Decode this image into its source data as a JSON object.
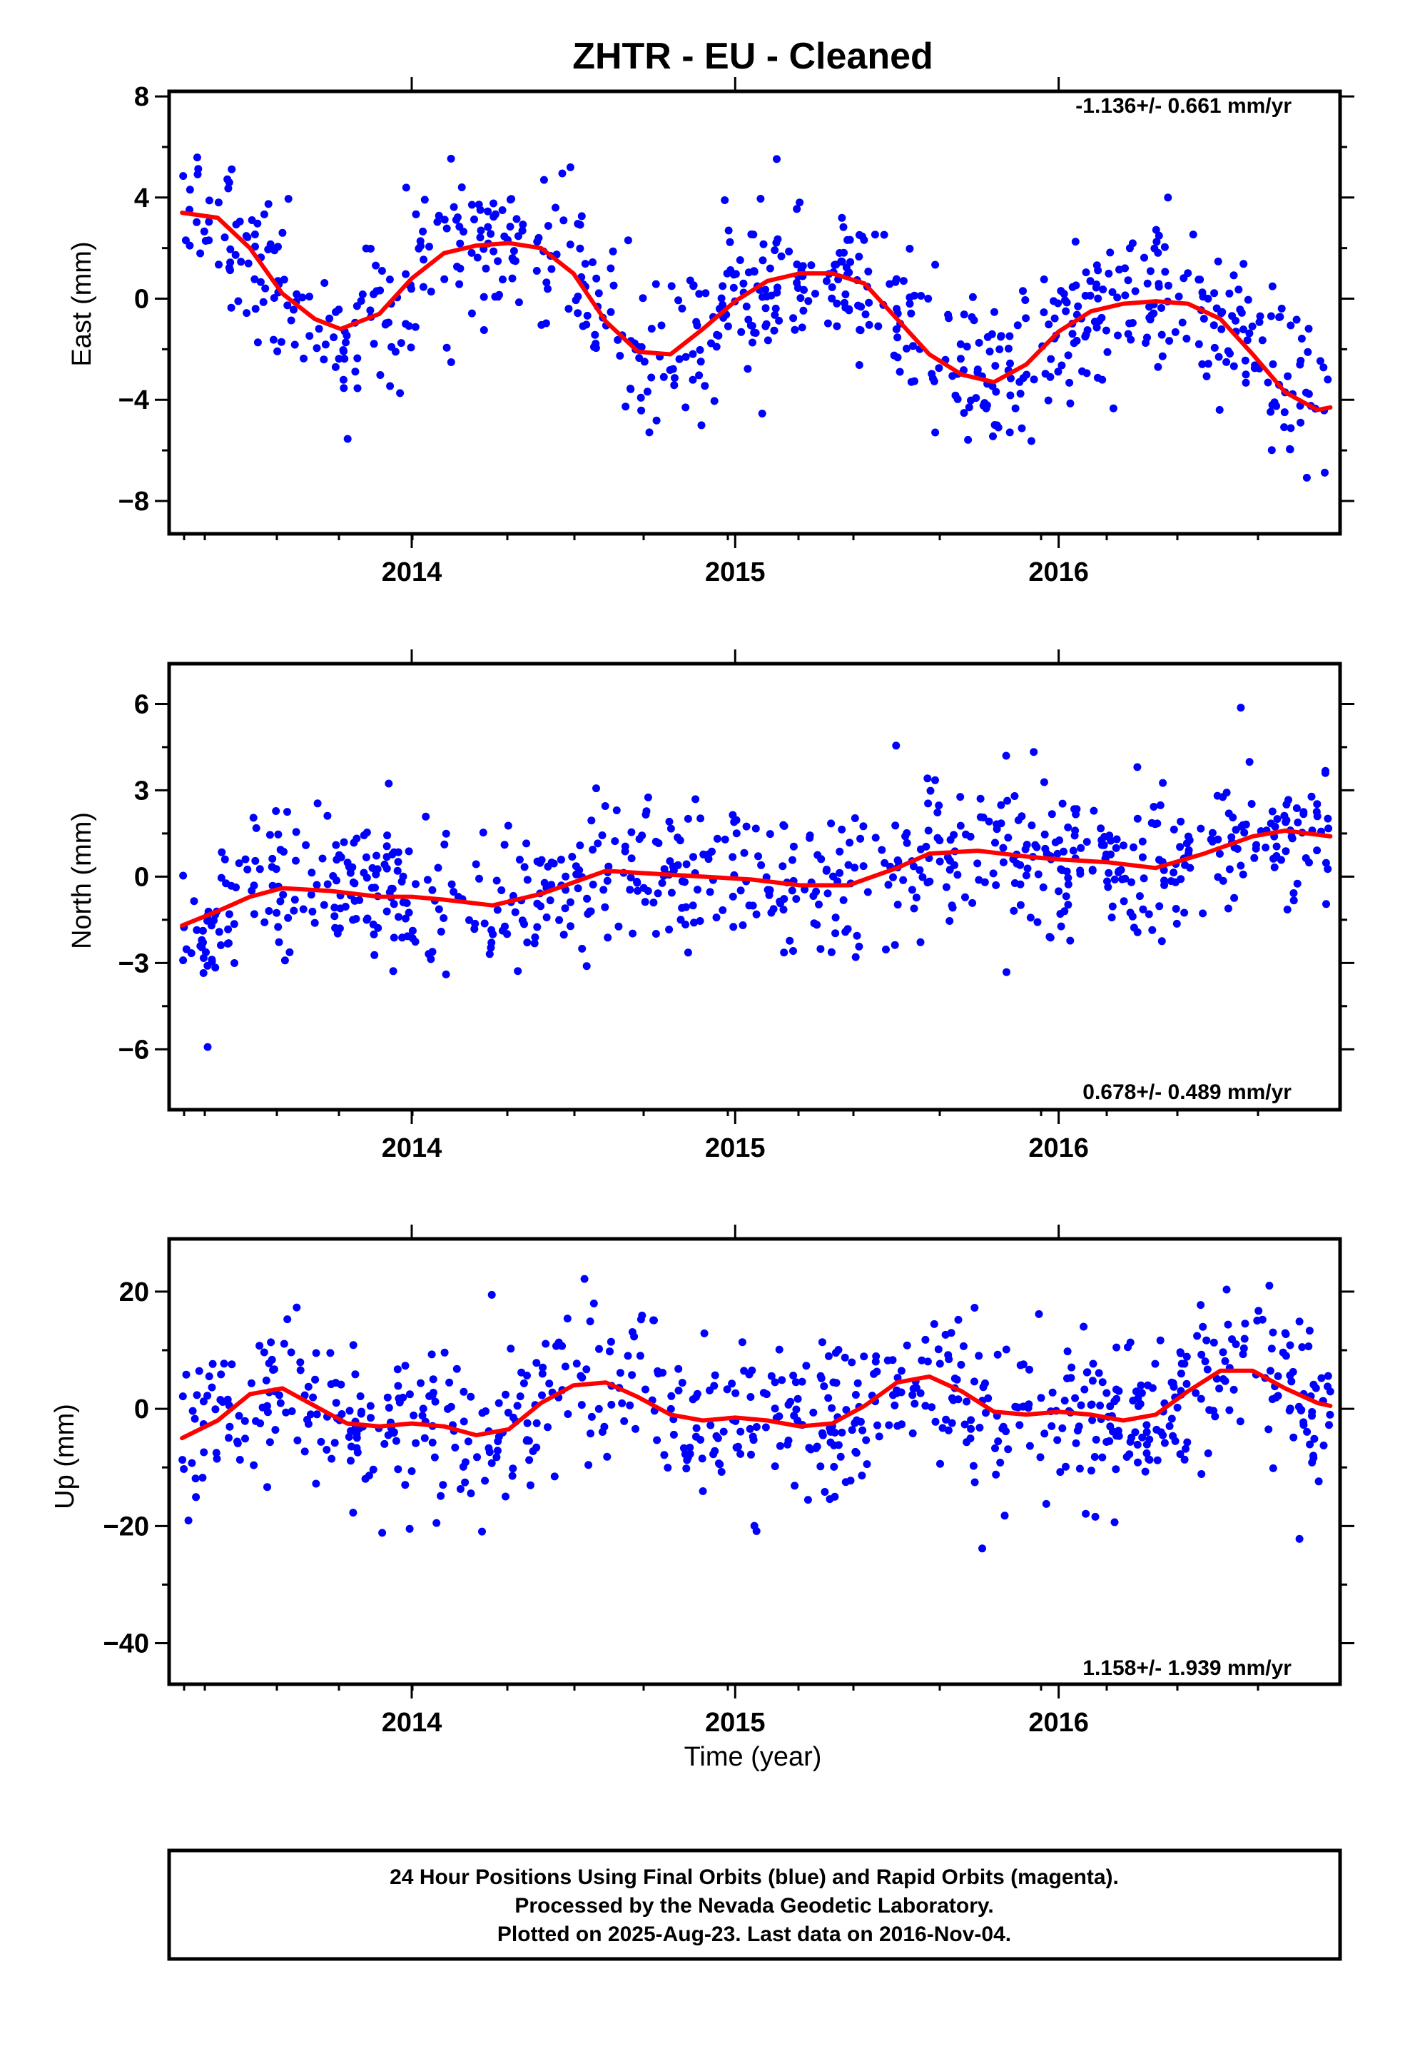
{
  "title": "ZHTR  - EU - Cleaned",
  "xlabel": "Time (year)",
  "footer": [
    "24 Hour Positions Using Final Orbits (blue) and Rapid Orbits (magenta).",
    "Processed by the Nevada Geodetic Laboratory.",
    "Plotted on 2025-Aug-23. Last data on 2016-Nov-04."
  ],
  "colors": {
    "points": "#0000ff",
    "trend": "#ff0000",
    "frame": "#000000"
  },
  "chart_data": [
    {
      "type": "scatter",
      "ylabel": "East (mm)",
      "rate": "-1.136+/- 0.661 mm/yr",
      "rate_position": "top-right",
      "xlim": [
        2013.25,
        2016.87
      ],
      "ylim": [
        -9.3,
        8.2
      ],
      "yticks": [
        -8,
        -4,
        0,
        4,
        8
      ],
      "xticks": [
        2014,
        2015,
        2016
      ],
      "trend": {
        "x": [
          2013.29,
          2013.4,
          2013.5,
          2013.6,
          2013.7,
          2013.78,
          2013.9,
          2014.0,
          2014.1,
          2014.2,
          2014.3,
          2014.4,
          2014.5,
          2014.6,
          2014.7,
          2014.8,
          2014.9,
          2015.0,
          2015.1,
          2015.2,
          2015.3,
          2015.4,
          2015.5,
          2015.6,
          2015.7,
          2015.8,
          2015.9,
          2016.0,
          2016.1,
          2016.2,
          2016.3,
          2016.4,
          2016.5,
          2016.6,
          2016.7,
          2016.8,
          2016.84
        ],
        "y": [
          3.4,
          3.2,
          2.0,
          0.2,
          -0.8,
          -1.2,
          -0.6,
          0.8,
          1.8,
          2.1,
          2.2,
          2.0,
          1.0,
          -0.9,
          -2.1,
          -2.2,
          -1.2,
          -0.1,
          0.7,
          1.0,
          1.0,
          0.6,
          -0.8,
          -2.2,
          -3.0,
          -3.3,
          -2.6,
          -1.3,
          -0.5,
          -0.2,
          -0.1,
          -0.2,
          -0.8,
          -2.2,
          -3.7,
          -4.4,
          -4.3
        ]
      }
    },
    {
      "type": "scatter",
      "ylabel": "North (mm)",
      "rate": "0.678+/- 0.489 mm/yr",
      "rate_position": "bottom-right",
      "xlim": [
        2013.25,
        2016.87
      ],
      "ylim": [
        -8.1,
        7.4
      ],
      "yticks": [
        -6,
        -3,
        0,
        3,
        6
      ],
      "xticks": [
        2014,
        2015,
        2016
      ],
      "trend": {
        "x": [
          2013.29,
          2013.4,
          2013.5,
          2013.6,
          2013.75,
          2013.9,
          2014.0,
          2014.1,
          2014.25,
          2014.4,
          2014.5,
          2014.6,
          2014.75,
          2014.9,
          2015.05,
          2015.2,
          2015.35,
          2015.5,
          2015.6,
          2015.75,
          2015.9,
          2016.0,
          2016.15,
          2016.3,
          2016.45,
          2016.6,
          2016.7,
          2016.84
        ],
        "y": [
          -1.7,
          -1.2,
          -0.7,
          -0.4,
          -0.5,
          -0.7,
          -0.7,
          -0.8,
          -1.0,
          -0.6,
          -0.2,
          0.2,
          0.1,
          0.0,
          -0.1,
          -0.3,
          -0.3,
          0.3,
          0.8,
          0.9,
          0.7,
          0.6,
          0.5,
          0.3,
          0.8,
          1.4,
          1.6,
          1.4
        ]
      }
    },
    {
      "type": "scatter",
      "ylabel": "Up (mm)",
      "rate": "1.158+/- 1.939 mm/yr",
      "rate_position": "bottom-right",
      "xlim": [
        2013.25,
        2016.87
      ],
      "ylim": [
        -47,
        29
      ],
      "yticks": [
        -40,
        -20,
        0,
        20
      ],
      "xticks": [
        2014,
        2015,
        2016
      ],
      "trend": {
        "x": [
          2013.29,
          2013.4,
          2013.5,
          2013.6,
          2013.7,
          2013.8,
          2013.9,
          2014.0,
          2014.1,
          2014.2,
          2014.3,
          2014.4,
          2014.5,
          2014.6,
          2014.7,
          2014.8,
          2014.9,
          2015.0,
          2015.1,
          2015.2,
          2015.3,
          2015.4,
          2015.5,
          2015.6,
          2015.7,
          2015.8,
          2015.9,
          2016.0,
          2016.1,
          2016.2,
          2016.3,
          2016.4,
          2016.5,
          2016.6,
          2016.7,
          2016.8,
          2016.84
        ],
        "y": [
          -5.0,
          -2.0,
          2.5,
          3.5,
          0.5,
          -2.5,
          -3.0,
          -2.5,
          -3.0,
          -4.5,
          -3.5,
          1.0,
          4.0,
          4.5,
          2.0,
          -1.0,
          -2.0,
          -1.5,
          -2.0,
          -3.0,
          -2.5,
          0.5,
          4.5,
          5.5,
          3.0,
          -0.5,
          -1.0,
          -0.5,
          -1.0,
          -2.0,
          -1.0,
          3.0,
          6.5,
          6.5,
          3.5,
          1.0,
          0.5
        ]
      }
    }
  ]
}
